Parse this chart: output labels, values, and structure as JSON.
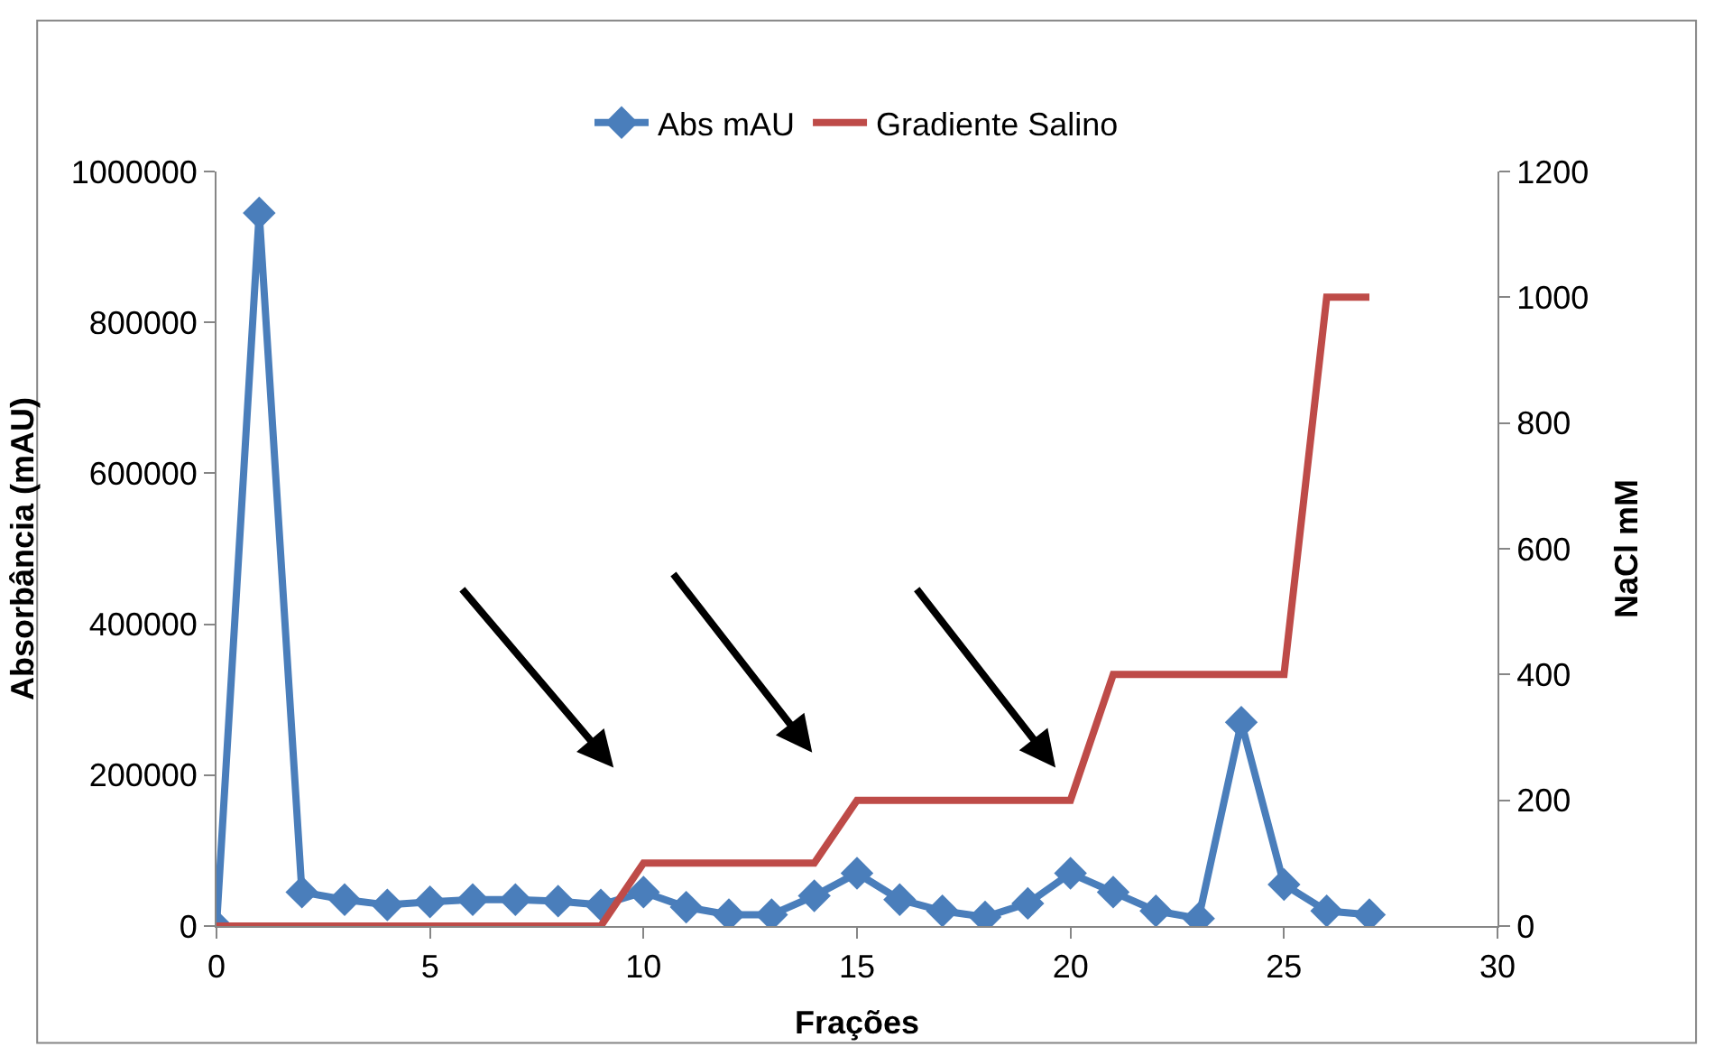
{
  "chart_data": {
    "type": "line",
    "xlabel": "Frações",
    "ylabel": "Absorbância (mAU)",
    "y2label": "NaCl mM",
    "x": [
      0,
      1,
      2,
      3,
      4,
      5,
      6,
      7,
      8,
      9,
      10,
      11,
      12,
      13,
      14,
      15,
      16,
      17,
      18,
      19,
      20,
      21,
      22,
      23,
      24,
      25,
      26,
      27
    ],
    "series": [
      {
        "name": "Abs mAU",
        "color": "#4a7ebb",
        "marker": "diamond",
        "values": [
          0,
          945000,
          45000,
          35000,
          28000,
          32000,
          35000,
          35000,
          33000,
          28000,
          45000,
          25000,
          15000,
          15000,
          40000,
          70000,
          35000,
          20000,
          12000,
          30000,
          70000,
          45000,
          20000,
          10000,
          270000,
          55000,
          20000,
          15000
        ]
      },
      {
        "name": "Gradiente Salino",
        "color": "#be4b48",
        "marker": "none",
        "axis": "y2",
        "values": [
          0,
          0,
          0,
          0,
          0,
          0,
          0,
          0,
          0,
          0,
          100,
          100,
          100,
          100,
          100,
          200,
          200,
          200,
          200,
          200,
          200,
          400,
          400,
          400,
          400,
          400,
          1000,
          1000
        ]
      }
    ],
    "xlim": [
      0,
      30
    ],
    "xticks": [
      0,
      5,
      10,
      15,
      20,
      25,
      30
    ],
    "ylim": [
      0,
      1000000
    ],
    "yticks": [
      0,
      200000,
      400000,
      600000,
      800000,
      1000000
    ],
    "y2lim": [
      0,
      1200
    ],
    "y2ticks": [
      0,
      200,
      400,
      600,
      800,
      1000,
      1200
    ],
    "legend": "top",
    "line_style": "solid"
  }
}
